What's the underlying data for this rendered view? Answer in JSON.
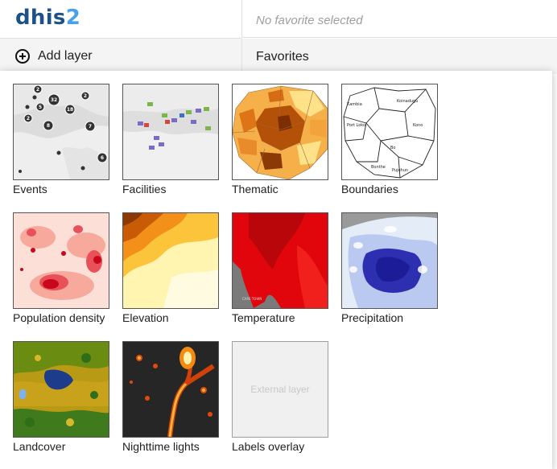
{
  "header": {
    "logo_part1": "dhis",
    "logo_part2": "2",
    "favorite_selected": "No favorite selected"
  },
  "toolbar": {
    "add_layer_label": "Add layer",
    "favorites_label": "Favorites"
  },
  "layers": [
    {
      "label": "Events",
      "thumbnail": "events-map"
    },
    {
      "label": "Facilities",
      "thumbnail": "facilities-map"
    },
    {
      "label": "Thematic",
      "thumbnail": "thematic-map"
    },
    {
      "label": "Boundaries",
      "thumbnail": "boundaries-map"
    },
    {
      "label": "Population density",
      "thumbnail": "population-density-map"
    },
    {
      "label": "Elevation",
      "thumbnail": "elevation-map"
    },
    {
      "label": "Temperature",
      "thumbnail": "temperature-map"
    },
    {
      "label": "Precipitation",
      "thumbnail": "precipitation-map"
    },
    {
      "label": "Landcover",
      "thumbnail": "landcover-map"
    },
    {
      "label": "Nighttime lights",
      "thumbnail": "nighttime-lights-map"
    },
    {
      "label": "Labels overlay",
      "thumbnail": "external-layer",
      "placeholder_text": "External layer"
    }
  ],
  "events_cluster_counts": [
    "2",
    "2",
    "32",
    "5",
    "18",
    "2",
    "8",
    "7",
    "6"
  ],
  "boundary_names": [
    "Koinadugu",
    "Kambia",
    "Port Loko",
    "Kono",
    "Bo",
    "Bonthe",
    "Pujehun"
  ],
  "map_caption_temperature": "CAPE TOWN",
  "colors": {
    "logo_dark": "#1d5288",
    "logo_light": "#48a0e8",
    "bar_background": "#f4f4f4"
  }
}
